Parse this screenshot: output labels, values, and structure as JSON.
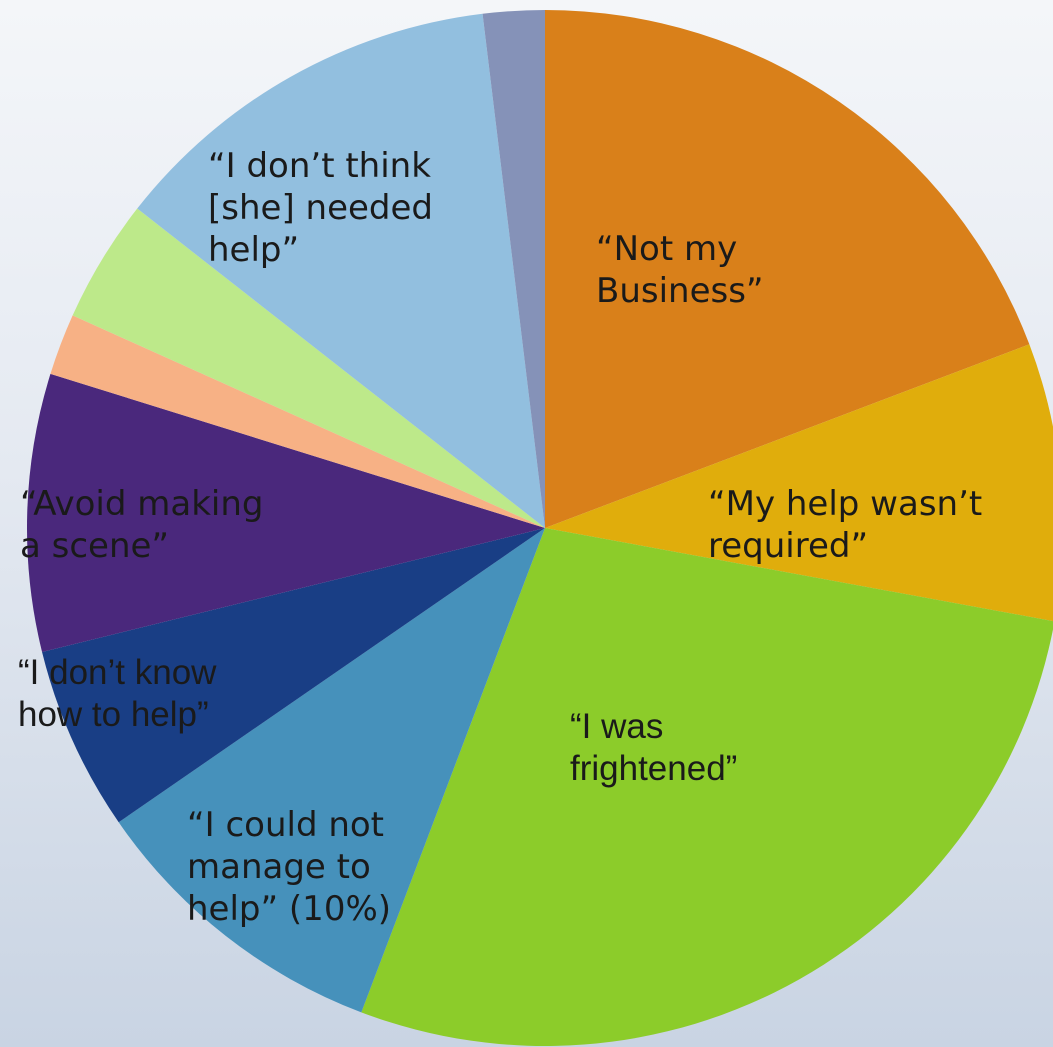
{
  "chart_data": {
    "type": "pie",
    "start_angle_deg": 0,
    "direction": "clockwise",
    "slices": [
      {
        "label": "“Not my\nBusiness”",
        "value": 20,
        "color": "#d9801a"
      },
      {
        "label": "“My help wasn’t\nrequired”",
        "value": 9,
        "color": "#e0ad0c"
      },
      {
        "label": "“I was\nfrightened”",
        "value": 29,
        "color": "#8ccc2a"
      },
      {
        "label": "“I could not\nmanage to\nhelp” (10%)",
        "value": 10,
        "color": "#4691bb"
      },
      {
        "label": "“I don’t know\nhow to help”",
        "value": 6,
        "color": "#193e85"
      },
      {
        "label": "“Avoid making\na scene”",
        "value": 9,
        "color": "#4a287c"
      },
      {
        "label": "",
        "value": 2,
        "color": "#f7b185"
      },
      {
        "label": "",
        "value": 4,
        "color": "#bde98a"
      },
      {
        "label": "“I don’t think\n[she] needed\nhelp”",
        "value": 13,
        "color": "#92bfdf"
      },
      {
        "label": "",
        "value": 2,
        "color": "#8592b8"
      }
    ]
  }
}
